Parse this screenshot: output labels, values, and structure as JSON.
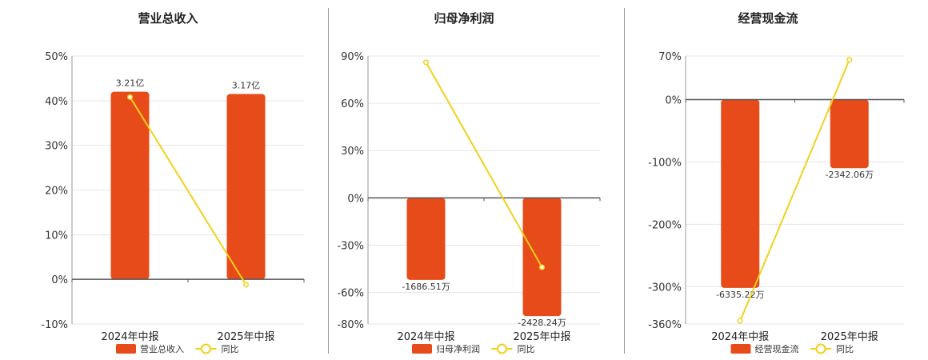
{
  "colors": {
    "bar": "#E84B1A",
    "line": "#F2D11B",
    "grid": "#e6e6e6",
    "axis": "#555555"
  },
  "legend": {
    "bar_label_key": "series_bar_name",
    "line_label": "同比"
  },
  "chart_data": [
    {
      "type": "bar",
      "title": "营业总收入",
      "categories": [
        "2024年中报",
        "2025年中报"
      ],
      "ylim": [
        -10,
        50
      ],
      "yticks": [
        -10,
        0,
        10,
        20,
        30,
        40,
        50
      ],
      "ytick_labels": [
        "-10%",
        "0%",
        "10%",
        "20%",
        "30%",
        "40%",
        "50%"
      ],
      "series": [
        {
          "name": "营业总收入",
          "kind": "bar",
          "values": [
            42,
            41.5
          ],
          "labels": [
            "3.21亿",
            "3.17亿"
          ]
        },
        {
          "name": "同比",
          "kind": "line",
          "values": [
            40.8,
            -1.2
          ]
        }
      ],
      "grid": true,
      "legend_position": "bottom"
    },
    {
      "type": "bar",
      "title": "归母净利润",
      "categories": [
        "2024年中报",
        "2025年中报"
      ],
      "ylim": [
        -80,
        90
      ],
      "yticks": [
        -80,
        -60,
        -30,
        0,
        30,
        60,
        90
      ],
      "ytick_labels": [
        "-80%",
        "-60%",
        "-30%",
        "0%",
        "30%",
        "60%",
        "90%"
      ],
      "series": [
        {
          "name": "归母净利润",
          "kind": "bar",
          "values": [
            -52,
            -75
          ],
          "labels": [
            "-1686.51万",
            "-2428.24万"
          ]
        },
        {
          "name": "同比",
          "kind": "line",
          "values": [
            86,
            -44
          ]
        }
      ],
      "grid": true,
      "legend_position": "bottom"
    },
    {
      "type": "bar",
      "title": "经营现金流",
      "categories": [
        "2024年中报",
        "2025年中报"
      ],
      "ylim": [
        -360,
        70
      ],
      "yticks": [
        -360,
        -300,
        -200,
        -100,
        0,
        70
      ],
      "ytick_labels": [
        "-360%",
        "-300%",
        "-200%",
        "-100%",
        "0%",
        "70%"
      ],
      "series": [
        {
          "name": "经营现金流",
          "kind": "bar",
          "values": [
            -302,
            -110
          ],
          "labels": [
            "-6335.22万",
            "-2342.06万"
          ]
        },
        {
          "name": "同比",
          "kind": "line",
          "values": [
            -355,
            64
          ]
        }
      ],
      "grid": true,
      "legend_position": "bottom"
    }
  ]
}
